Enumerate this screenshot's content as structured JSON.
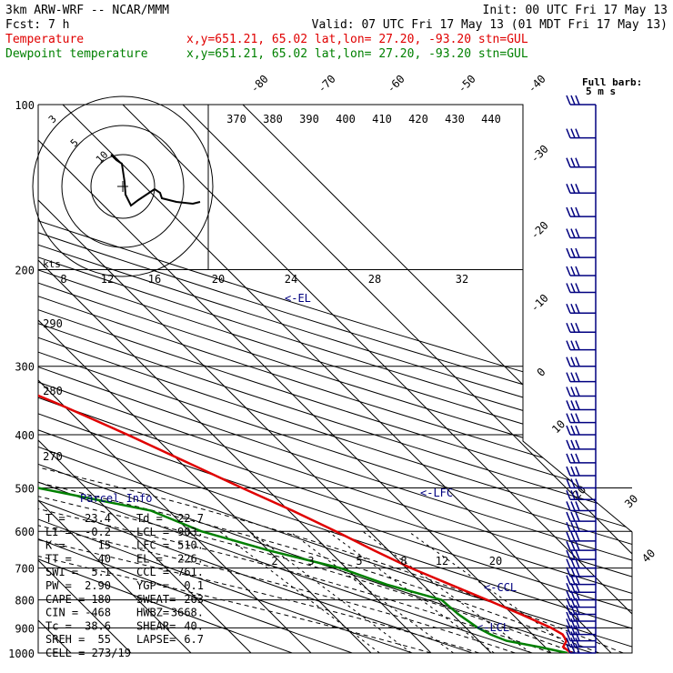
{
  "header": {
    "line1_left": "3km ARW-WRF -- NCAR/MMM",
    "line1_right": "Init: 00 UTC Fri 17 May 13",
    "line2_left": "Fcst:     7 h",
    "line2_right": "Valid: 07 UTC Fri 17 May 13 (01 MDT Fri 17 May 13)",
    "line3_label": "Temperature",
    "line3_info": "x,y=651.21, 65.02   lat,lon= 27.20, -93.20   stn=GUL",
    "line4_label": "Dewpoint temperature",
    "line4_info": "x,y=651.21, 65.02   lat,lon= 27.20, -93.20   stn=GUL"
  },
  "colors": {
    "temperature": "#e00000",
    "dewpoint": "#008000",
    "wind": "#000080",
    "hodograph": "#000000"
  },
  "chart_data": {
    "type": "line",
    "title": "",
    "ylabel": "",
    "xlabel": "",
    "pressure_levels": [
      "100",
      "200",
      "300",
      "400",
      "500",
      "600",
      "700",
      "800",
      "900",
      "1000"
    ],
    "skewed_temperature_labels": [
      "-80",
      "-70",
      "-60",
      "-50",
      "-40",
      "-30",
      "-20",
      "-10",
      "0",
      "10",
      "20",
      "30",
      "40"
    ],
    "theta_labels": [
      "370",
      "380",
      "390",
      "400",
      "410",
      "420",
      "430",
      "440"
    ],
    "theta_left_labels": [
      "290",
      "280",
      "270"
    ],
    "mixing_ratio_labels": [
      "2",
      "3",
      "5",
      "8",
      "12",
      "20"
    ],
    "hodograph_speed_labels": [
      "8",
      "12",
      "16",
      "20",
      "24",
      "28",
      "32"
    ],
    "hodograph_units": "kts",
    "hodograph_ring_labels": [
      "3",
      "5",
      "10"
    ],
    "level_markers": [
      "<-EL",
      "<-LFC",
      "<-CCL",
      "<-LCL"
    ],
    "barb_legend": [
      "Full barb:",
      "5 m s"
    ],
    "series": [
      {
        "name": "Temperature",
        "points": [
          {
            "p": 1000,
            "t": 23.4
          },
          {
            "p": 975,
            "t": 23.0
          },
          {
            "p": 950,
            "t": 24.6
          },
          {
            "p": 925,
            "t": 25.0
          },
          {
            "p": 900,
            "t": 24.2
          },
          {
            "p": 850,
            "t": 21.4
          },
          {
            "p": 800,
            "t": 18.2
          },
          {
            "p": 750,
            "t": 14.6
          },
          {
            "p": 700,
            "t": 10.8
          },
          {
            "p": 650,
            "t": 7.6
          },
          {
            "p": 600,
            "t": 4.4
          },
          {
            "p": 550,
            "t": 0.6
          },
          {
            "p": 500,
            "t": -4.0
          },
          {
            "p": 450,
            "t": -8.8
          },
          {
            "p": 400,
            "t": -14.2
          },
          {
            "p": 350,
            "t": -20.8
          },
          {
            "p": 300,
            "t": -29.6
          },
          {
            "p": 250,
            "t": -39.2
          },
          {
            "p": 200,
            "t": -50.6
          },
          {
            "p": 175,
            "t": -56.4
          },
          {
            "p": 150,
            "t": -62.0
          },
          {
            "p": 125,
            "t": -68.4
          },
          {
            "p": 100,
            "t": -75.2
          }
        ]
      },
      {
        "name": "Dewpoint temperature",
        "points": [
          {
            "p": 1000,
            "t": 22.7
          },
          {
            "p": 975,
            "t": 19.0
          },
          {
            "p": 950,
            "t": 14.6
          },
          {
            "p": 925,
            "t": 13.0
          },
          {
            "p": 900,
            "t": 12.0
          },
          {
            "p": 850,
            "t": 11.0
          },
          {
            "p": 800,
            "t": 10.6
          },
          {
            "p": 750,
            "t": 4.0
          },
          {
            "p": 700,
            "t": -1.0
          },
          {
            "p": 650,
            "t": -10.0
          },
          {
            "p": 600,
            "t": -18.0
          },
          {
            "p": 550,
            "t": -23.0
          },
          {
            "p": 500,
            "t": -38.0
          },
          {
            "p": 470,
            "t": -45.0
          },
          {
            "p": 430,
            "t": -38.0
          },
          {
            "p": 400,
            "t": -34.0
          },
          {
            "p": 350,
            "t": -32.0
          },
          {
            "p": 300,
            "t": -20.0
          },
          {
            "p": 250,
            "t": -35.0
          },
          {
            "p": 200,
            "t": -55.0
          },
          {
            "p": 150,
            "t": -66.0
          },
          {
            "p": 100,
            "t": -85.0
          }
        ]
      }
    ],
    "wind_barbs_pressure": [
      100,
      115,
      130,
      145,
      160,
      175,
      190,
      205,
      220,
      240,
      260,
      280,
      300,
      320,
      340,
      360,
      380,
      400,
      425,
      450,
      475,
      500,
      525,
      550,
      575,
      600,
      625,
      650,
      675,
      700,
      725,
      750,
      775,
      800,
      825,
      850,
      875,
      900,
      925,
      950,
      975,
      1000
    ]
  },
  "parcel_info": {
    "title": "Parcel Info",
    "rows": [
      [
        "T  =",
        "23.4",
        "Td =",
        "22.7"
      ],
      [
        "LI =",
        "-0.2",
        "LCL =",
        "903."
      ],
      [
        "K  =",
        "15",
        "LFC =",
        "510."
      ],
      [
        "TT =",
        "40",
        "EL  =",
        "226."
      ],
      [
        "SWI =",
        "5.1",
        "CCL =",
        "761."
      ],
      [
        "PW =",
        "2.90",
        "YGP =",
        "0.1"
      ],
      [
        "CAPE =",
        "180",
        "SWEAT=",
        "263"
      ],
      [
        "CIN =",
        "-468",
        "HWBZ=",
        "3668."
      ],
      [
        "Tc =",
        "38.6",
        "SHEAR=",
        "40."
      ],
      [
        "SREH =",
        "55",
        "LAPSE=",
        "6.7"
      ]
    ],
    "cell": "CELL = 273/19"
  }
}
